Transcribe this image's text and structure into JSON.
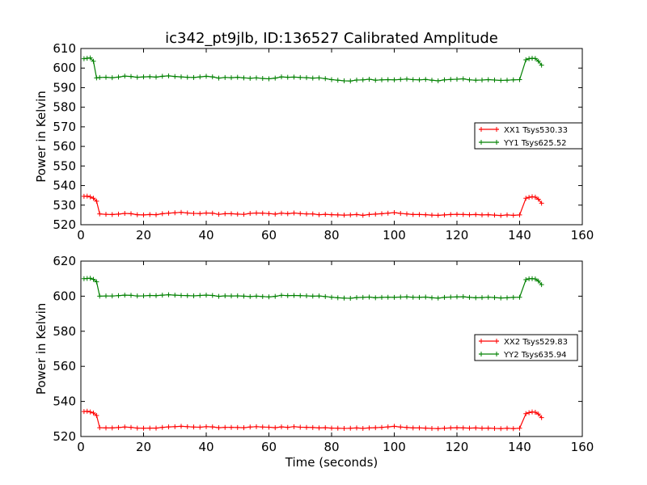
{
  "title": "ic342_pt9jlb, ID:136527 Calibrated Amplitude",
  "chart_data": [
    {
      "type": "line",
      "title": "ic342_pt9jlb, ID:136527 Calibrated Amplitude",
      "xlabel": "",
      "ylabel": "Power in Kelvin",
      "xlim": [
        0,
        160
      ],
      "ylim": [
        520,
        610
      ],
      "xticks": [
        0,
        20,
        40,
        60,
        80,
        100,
        120,
        140,
        160
      ],
      "yticks": [
        520,
        530,
        540,
        550,
        560,
        570,
        580,
        590,
        600,
        610
      ],
      "legend_position": "center-right",
      "series": [
        {
          "name": "XX1 Tsys530.33",
          "color": "#ff0000",
          "x": [
            1,
            2,
            3,
            4,
            5,
            6,
            8,
            10,
            12,
            14,
            16,
            18,
            20,
            22,
            24,
            26,
            28,
            30,
            32,
            34,
            36,
            38,
            40,
            42,
            44,
            46,
            48,
            50,
            52,
            54,
            56,
            58,
            60,
            62,
            64,
            66,
            68,
            70,
            72,
            74,
            76,
            78,
            80,
            82,
            84,
            86,
            88,
            90,
            92,
            94,
            96,
            98,
            100,
            102,
            104,
            106,
            108,
            110,
            112,
            114,
            116,
            118,
            120,
            122,
            124,
            126,
            128,
            130,
            132,
            134,
            136,
            138,
            140,
            142,
            143,
            144,
            145,
            146,
            147
          ],
          "y": [
            534.5,
            534.6,
            534.2,
            533.5,
            532.0,
            525.5,
            525.3,
            525.2,
            525.4,
            525.8,
            525.6,
            525.1,
            525.0,
            525.2,
            525.1,
            525.6,
            525.9,
            526.1,
            526.3,
            526.0,
            525.8,
            525.7,
            526.0,
            525.9,
            525.3,
            525.6,
            525.6,
            525.4,
            525.3,
            525.8,
            526.0,
            525.9,
            525.7,
            525.4,
            525.9,
            525.6,
            526.0,
            525.7,
            525.5,
            525.5,
            525.1,
            525.3,
            525.1,
            525.0,
            524.9,
            525.0,
            525.2,
            524.8,
            525.2,
            525.4,
            525.6,
            525.9,
            526.2,
            525.8,
            525.5,
            525.2,
            525.2,
            525.1,
            524.9,
            524.8,
            525.0,
            525.2,
            525.3,
            525.2,
            525.1,
            525.2,
            525.0,
            525.1,
            524.9,
            524.7,
            525.0,
            524.8,
            525.0,
            533.5,
            534.0,
            534.3,
            534.1,
            533.0,
            531.0
          ]
        },
        {
          "name": "YY1 Tsys625.52",
          "color": "#008000",
          "x": [
            1,
            2,
            3,
            4,
            5,
            6,
            8,
            10,
            12,
            14,
            16,
            18,
            20,
            22,
            24,
            26,
            28,
            30,
            32,
            34,
            36,
            38,
            40,
            42,
            44,
            46,
            48,
            50,
            52,
            54,
            56,
            58,
            60,
            62,
            64,
            66,
            68,
            70,
            72,
            74,
            76,
            78,
            80,
            82,
            84,
            86,
            88,
            90,
            92,
            94,
            96,
            98,
            100,
            102,
            104,
            106,
            108,
            110,
            112,
            114,
            116,
            118,
            120,
            122,
            124,
            126,
            128,
            130,
            132,
            134,
            136,
            138,
            140,
            142,
            143,
            144,
            145,
            146,
            147
          ],
          "y": [
            604.8,
            605.0,
            605.2,
            603.5,
            595.0,
            595.2,
            595.3,
            595.1,
            595.4,
            595.9,
            595.7,
            595.3,
            595.5,
            595.6,
            595.4,
            595.8,
            596.0,
            595.7,
            595.5,
            595.3,
            595.2,
            595.5,
            595.8,
            595.5,
            594.9,
            595.2,
            595.1,
            595.3,
            595.0,
            594.8,
            595.0,
            594.7,
            594.5,
            594.9,
            595.5,
            595.3,
            595.4,
            595.2,
            595.1,
            594.9,
            595.0,
            594.6,
            594.1,
            593.8,
            593.5,
            593.4,
            593.9,
            594.0,
            594.3,
            593.8,
            594.0,
            594.1,
            594.0,
            594.2,
            594.4,
            594.1,
            594.0,
            594.2,
            593.8,
            593.5,
            594.0,
            594.2,
            594.3,
            594.5,
            594.0,
            593.8,
            593.9,
            594.1,
            593.9,
            593.7,
            593.8,
            594.0,
            594.1,
            604.2,
            604.8,
            605.0,
            604.9,
            603.5,
            601.5
          ]
        }
      ]
    },
    {
      "type": "line",
      "title": "",
      "xlabel": "Time (seconds)",
      "ylabel": "Power in Kelvin",
      "xlim": [
        0,
        160
      ],
      "ylim": [
        520,
        620
      ],
      "xticks": [
        0,
        20,
        40,
        60,
        80,
        100,
        120,
        140,
        160
      ],
      "yticks": [
        520,
        540,
        560,
        580,
        600,
        620
      ],
      "legend_position": "center-right",
      "series": [
        {
          "name": "XX2 Tsys529.83",
          "color": "#ff0000",
          "x": [
            1,
            2,
            3,
            4,
            5,
            6,
            8,
            10,
            12,
            14,
            16,
            18,
            20,
            22,
            24,
            26,
            28,
            30,
            32,
            34,
            36,
            38,
            40,
            42,
            44,
            46,
            48,
            50,
            52,
            54,
            56,
            58,
            60,
            62,
            64,
            66,
            68,
            70,
            72,
            74,
            76,
            78,
            80,
            82,
            84,
            86,
            88,
            90,
            92,
            94,
            96,
            98,
            100,
            102,
            104,
            106,
            108,
            110,
            112,
            114,
            116,
            118,
            120,
            122,
            124,
            126,
            128,
            130,
            132,
            134,
            136,
            138,
            140,
            142,
            143,
            144,
            145,
            146,
            147
          ],
          "y": [
            534.2,
            534.4,
            534.0,
            533.4,
            532.0,
            525.0,
            524.9,
            524.9,
            525.1,
            525.4,
            525.2,
            524.8,
            524.7,
            524.8,
            524.8,
            525.2,
            525.5,
            525.6,
            525.8,
            525.6,
            525.4,
            525.3,
            525.6,
            525.5,
            525.0,
            525.2,
            525.2,
            525.1,
            525.0,
            525.4,
            525.6,
            525.4,
            525.3,
            525.0,
            525.5,
            525.2,
            525.6,
            525.3,
            525.2,
            525.1,
            524.9,
            525.0,
            524.8,
            524.7,
            524.6,
            524.7,
            524.9,
            524.6,
            524.9,
            525.0,
            525.2,
            525.5,
            525.8,
            525.4,
            525.1,
            524.9,
            524.9,
            524.8,
            524.6,
            524.5,
            524.7,
            524.9,
            525.0,
            524.9,
            524.8,
            524.9,
            524.7,
            524.8,
            524.6,
            524.5,
            524.7,
            524.5,
            524.7,
            533.0,
            533.6,
            534.0,
            533.8,
            532.8,
            530.8
          ]
        },
        {
          "name": "YY2 Tsys635.94",
          "color": "#008000",
          "x": [
            1,
            2,
            3,
            4,
            5,
            6,
            8,
            10,
            12,
            14,
            16,
            18,
            20,
            22,
            24,
            26,
            28,
            30,
            32,
            34,
            36,
            38,
            40,
            42,
            44,
            46,
            48,
            50,
            52,
            54,
            56,
            58,
            60,
            62,
            64,
            66,
            68,
            70,
            72,
            74,
            76,
            78,
            80,
            82,
            84,
            86,
            88,
            90,
            92,
            94,
            96,
            98,
            100,
            102,
            104,
            106,
            108,
            110,
            112,
            114,
            116,
            118,
            120,
            122,
            124,
            126,
            128,
            130,
            132,
            134,
            136,
            138,
            140,
            142,
            143,
            144,
            145,
            146,
            147
          ],
          "y": [
            610.0,
            610.1,
            610.2,
            609.6,
            608.2,
            600.0,
            600.1,
            600.1,
            600.3,
            600.6,
            600.5,
            600.1,
            600.2,
            600.4,
            600.3,
            600.6,
            600.8,
            600.6,
            600.4,
            600.3,
            600.2,
            600.4,
            600.6,
            600.4,
            599.9,
            600.2,
            600.1,
            600.2,
            600.0,
            599.8,
            600.0,
            599.8,
            599.6,
            599.9,
            600.5,
            600.3,
            600.4,
            600.3,
            600.2,
            600.0,
            600.1,
            599.8,
            599.4,
            599.1,
            598.9,
            598.8,
            599.2,
            599.3,
            599.5,
            599.1,
            599.3,
            599.4,
            599.3,
            599.5,
            599.6,
            599.4,
            599.3,
            599.5,
            599.1,
            598.9,
            599.3,
            599.5,
            599.6,
            599.7,
            599.3,
            599.1,
            599.2,
            599.4,
            599.2,
            599.0,
            599.1,
            599.3,
            599.4,
            609.4,
            609.9,
            610.0,
            609.8,
            608.6,
            606.6
          ]
        }
      ]
    }
  ]
}
